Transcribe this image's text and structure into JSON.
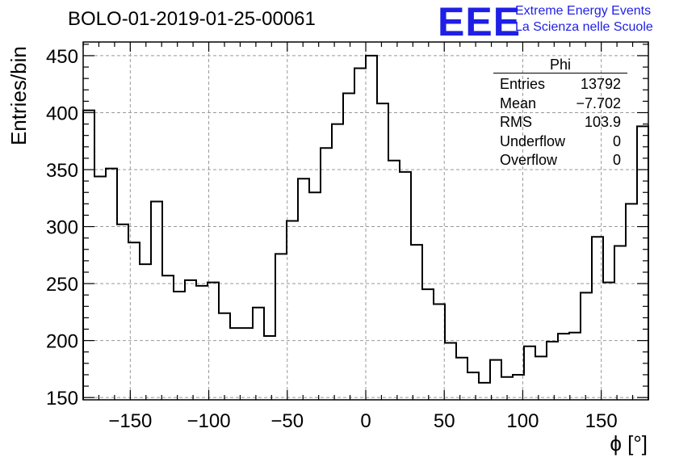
{
  "title": "BOLO-01-2019-01-25-00061",
  "logo": {
    "mark": "EEE",
    "line1": "Extreme Energy Events",
    "line2": "La Scienza nelle Scuole",
    "color": "#1f1fe6"
  },
  "stats_box": {
    "title": "Phi",
    "rows": [
      {
        "label": "Entries",
        "value": "13792"
      },
      {
        "label": "Mean",
        "value": "−7.702"
      },
      {
        "label": "RMS",
        "value": "103.9"
      },
      {
        "label": "Underflow",
        "value": "0"
      },
      {
        "label": "Overflow",
        "value": "0"
      }
    ]
  },
  "chart_data": {
    "type": "bar",
    "style": "step-histogram",
    "xlabel": "ϕ [°]",
    "ylabel": "Entries/bin",
    "xlim": [
      -180,
      180
    ],
    "ylim": [
      148,
      462
    ],
    "grid": true,
    "x_ticks": [
      -150,
      -100,
      -50,
      0,
      50,
      100,
      150
    ],
    "x_tick_labels": [
      "−150",
      "−100",
      "−50",
      "0",
      "50",
      "100",
      "150"
    ],
    "y_ticks": [
      150,
      200,
      250,
      300,
      350,
      400,
      450
    ],
    "bin_edges_start": -180,
    "bin_width": 7.2,
    "values": [
      402,
      344,
      351,
      302,
      286,
      267,
      322,
      257,
      243,
      253,
      248,
      251,
      224,
      211,
      211,
      229,
      204,
      276,
      305,
      342,
      330,
      369,
      390,
      417,
      439,
      450,
      408,
      358,
      348,
      284,
      245,
      232,
      198,
      185,
      172,
      163,
      183,
      168,
      170,
      195,
      186,
      199,
      206,
      207,
      242,
      291,
      251,
      283,
      320,
      388
    ],
    "line_color": "#000000"
  }
}
